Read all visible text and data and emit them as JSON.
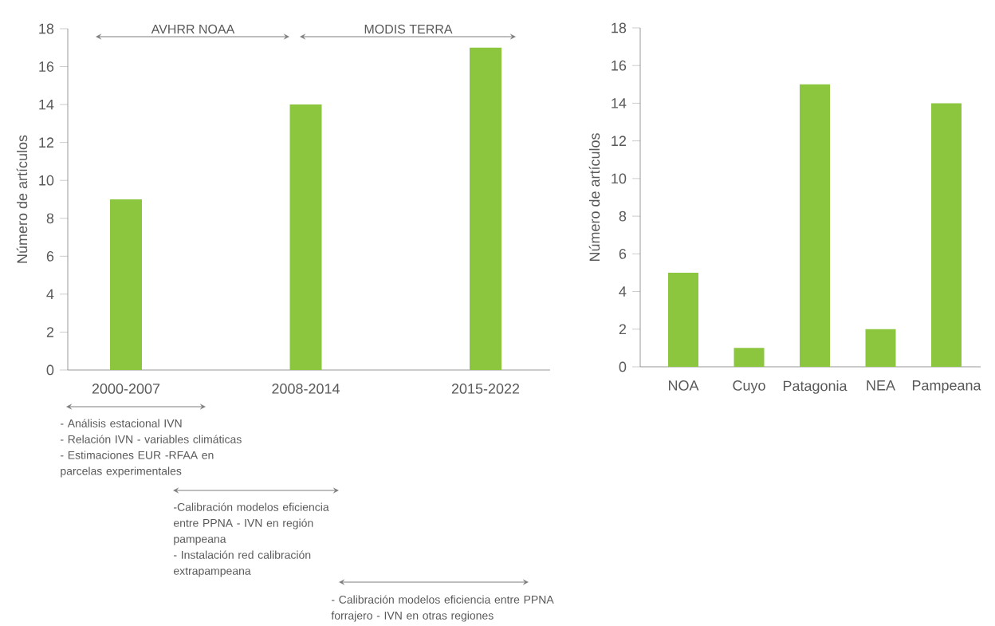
{
  "chart_data": [
    {
      "type": "bar",
      "ylabel": "Número de artículos",
      "categories": [
        "2000-2007",
        "2008-2014",
        "2015-2022"
      ],
      "values": [
        9,
        14,
        17
      ],
      "color": "#8cc63f",
      "ylim": [
        0,
        18
      ],
      "yticks": [
        0,
        2,
        4,
        6,
        8,
        10,
        12,
        14,
        16,
        18
      ],
      "annotations": [
        "AVHRR NOAA",
        "MODIS TERRA",
        "- Análisis estacional IVN",
        "- Relación IVN - variables climáticas",
        "- Estimaciones EUR -RFAA en parcelas experimentales",
        "-Calibración modelos eficiencia entre PPNA - IVN en región pampeana",
        "- Instalación red calibración extrapampeana",
        "- Calibración modelos eficiencia entre PPNA forrajero - IVN en otras regiones"
      ]
    },
    {
      "type": "bar",
      "ylabel": "Número de artículos",
      "categories": [
        "NOA",
        "Cuyo",
        "Patagonia",
        "NEA",
        "Pampeana"
      ],
      "values": [
        5,
        1,
        15,
        2,
        14
      ],
      "color": "#8cc63f",
      "ylim": [
        0,
        18
      ],
      "yticks": [
        0,
        2,
        4,
        6,
        8,
        10,
        12,
        14,
        16,
        18
      ]
    }
  ]
}
